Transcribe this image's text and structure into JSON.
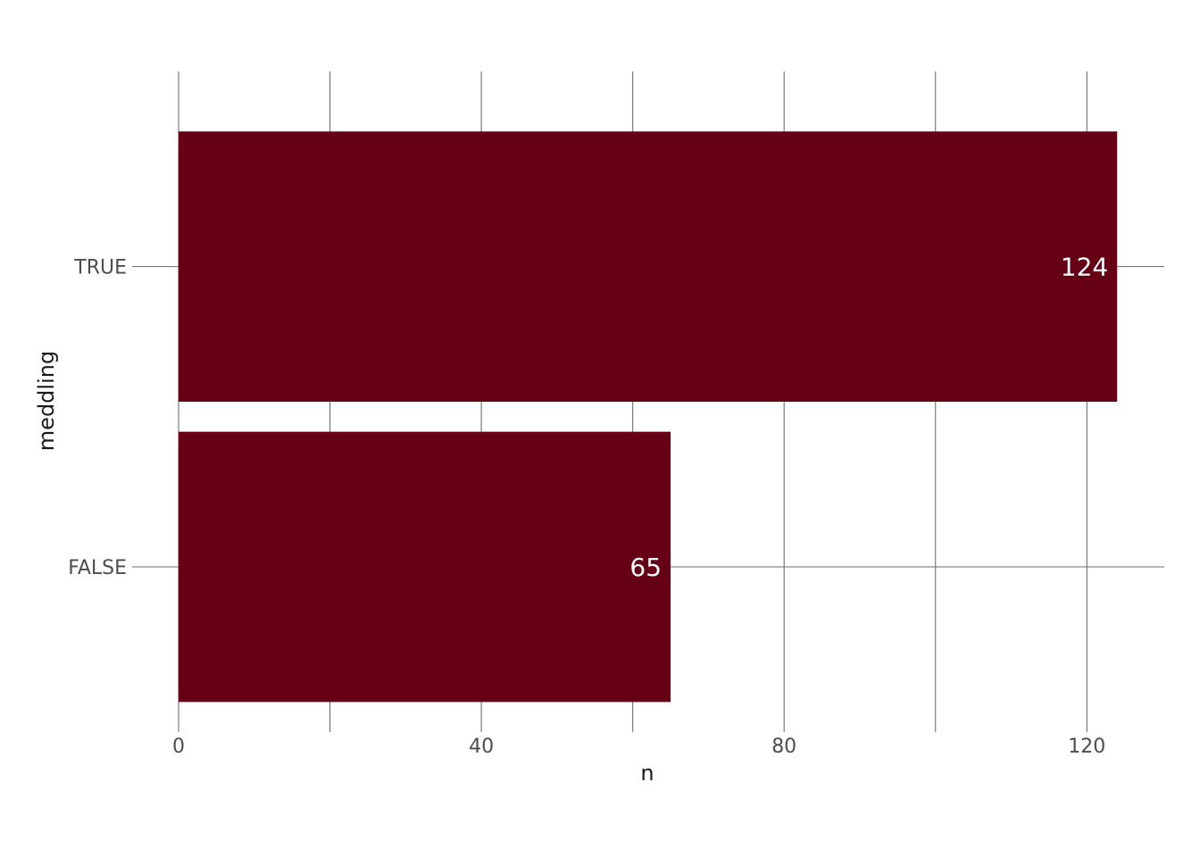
{
  "chart_data": {
    "type": "bar",
    "orientation": "horizontal",
    "categories": [
      "TRUE",
      "FALSE"
    ],
    "values": [
      124,
      65
    ],
    "data_labels": [
      "124",
      "65"
    ],
    "xlabel": "n",
    "ylabel": "meddling",
    "xlim": [
      0,
      130
    ],
    "x_ticks": [
      0,
      40,
      80,
      120
    ],
    "x_tick_labels": [
      "0",
      "40",
      "80",
      "120"
    ],
    "x_minor_gridlines": [
      20,
      60,
      100
    ],
    "grid": true,
    "legend": "none",
    "colors": {
      "bar": "#660014",
      "grid": "#6e6e6e",
      "data_label": "#ffffff"
    }
  }
}
